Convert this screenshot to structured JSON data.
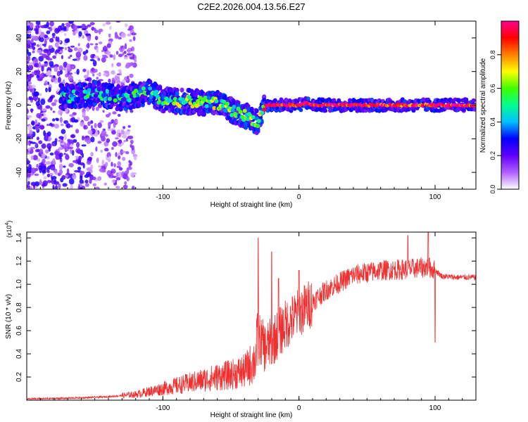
{
  "page_title": "C2E2.2026.004.13.56.E27",
  "chart_data": [
    {
      "type": "heatmap",
      "title": "C2E2.2026.004.13.56.E27",
      "xlabel": "Height of straight line (km)",
      "ylabel": "Frequency (Hz)",
      "xlim": [
        -200,
        130
      ],
      "ylim": [
        -50,
        50
      ],
      "x_ticks": [
        -100,
        0,
        100
      ],
      "x_tick_labels": [
        "-100",
        "0",
        "100"
      ],
      "y_ticks": [
        -40,
        -20,
        0,
        20,
        40
      ],
      "y_tick_labels": [
        "-40",
        "-20",
        "0",
        "20",
        "40"
      ],
      "colorbar": {
        "label": "Normalized spectral amplitude",
        "range": [
          0,
          1
        ],
        "ticks": [
          0.0,
          0.2,
          0.4,
          0.6,
          0.8
        ],
        "tick_labels": [
          "0.0",
          "0.2",
          "0.4",
          "0.6",
          "0.8"
        ],
        "colormap": [
          "#ffffff",
          "#b060ff",
          "#6000ff",
          "#0000ff",
          "#00c0ff",
          "#00ff90",
          "#40ff00",
          "#ffff00",
          "#ff8000",
          "#ff0000",
          "#ff0090"
        ]
      },
      "ridge": {
        "x": [
          -170,
          -150,
          -130,
          -110,
          -100,
          -80,
          -60,
          -50,
          -40,
          -30,
          -25,
          0,
          5,
          10,
          50,
          90,
          100,
          130
        ],
        "y": [
          5,
          7,
          4,
          8,
          3,
          2,
          1,
          -3,
          -6,
          -10,
          0,
          0,
          1.5,
          0,
          0,
          0,
          0,
          0
        ],
        "amplitude": [
          0.35,
          0.35,
          0.4,
          0.45,
          0.5,
          0.5,
          0.55,
          0.55,
          0.5,
          0.45,
          0.9,
          0.95,
          0.9,
          0.95,
          0.95,
          0.9,
          0.95,
          0.9
        ]
      },
      "noise_region": {
        "x_range": [
          -200,
          -120
        ],
        "y_range": [
          -50,
          50
        ],
        "amplitude_max": 0.25
      }
    },
    {
      "type": "line",
      "xlabel": "Height of straight line (km)",
      "ylabel": "SNR (10 * v/v)",
      "multiplier_label": "(x10",
      "multiplier_exp": "4",
      "multiplier_close": ")",
      "xlim": [
        -200,
        130
      ],
      "ylim": [
        0,
        1.45
      ],
      "x_ticks": [
        -100,
        0,
        100
      ],
      "x_tick_labels": [
        "-100",
        "0",
        "100"
      ],
      "y_ticks": [
        0.2,
        0.4,
        0.6,
        0.8,
        1.0,
        1.2,
        1.4
      ],
      "y_tick_labels": [
        "0.2",
        "0.4",
        "0.6",
        "0.8",
        "1.0",
        "1.2",
        "1.4"
      ],
      "color": "#f03030",
      "envelope": {
        "x": [
          -200,
          -160,
          -140,
          -120,
          -100,
          -80,
          -60,
          -50,
          -40,
          -32,
          -30,
          -25,
          -20,
          -10,
          0,
          10,
          20,
          40,
          60,
          80,
          95,
          100,
          105,
          115,
          130
        ],
        "y": [
          0.01,
          0.02,
          0.03,
          0.05,
          0.1,
          0.15,
          0.2,
          0.22,
          0.25,
          0.35,
          0.55,
          0.45,
          0.5,
          0.65,
          0.75,
          0.85,
          0.95,
          1.08,
          1.12,
          1.13,
          1.15,
          1.12,
          1.07,
          1.06,
          1.06
        ]
      },
      "spikes": [
        {
          "x": -30,
          "y": 1.4
        },
        {
          "x": -20,
          "y": 1.28
        },
        {
          "x": -15,
          "y": 1.05
        },
        {
          "x": 0,
          "y": 1.12
        },
        {
          "x": 80,
          "y": 1.42
        },
        {
          "x": 95,
          "y": 1.45
        },
        {
          "x": 100,
          "y": 0.5
        }
      ]
    }
  ]
}
